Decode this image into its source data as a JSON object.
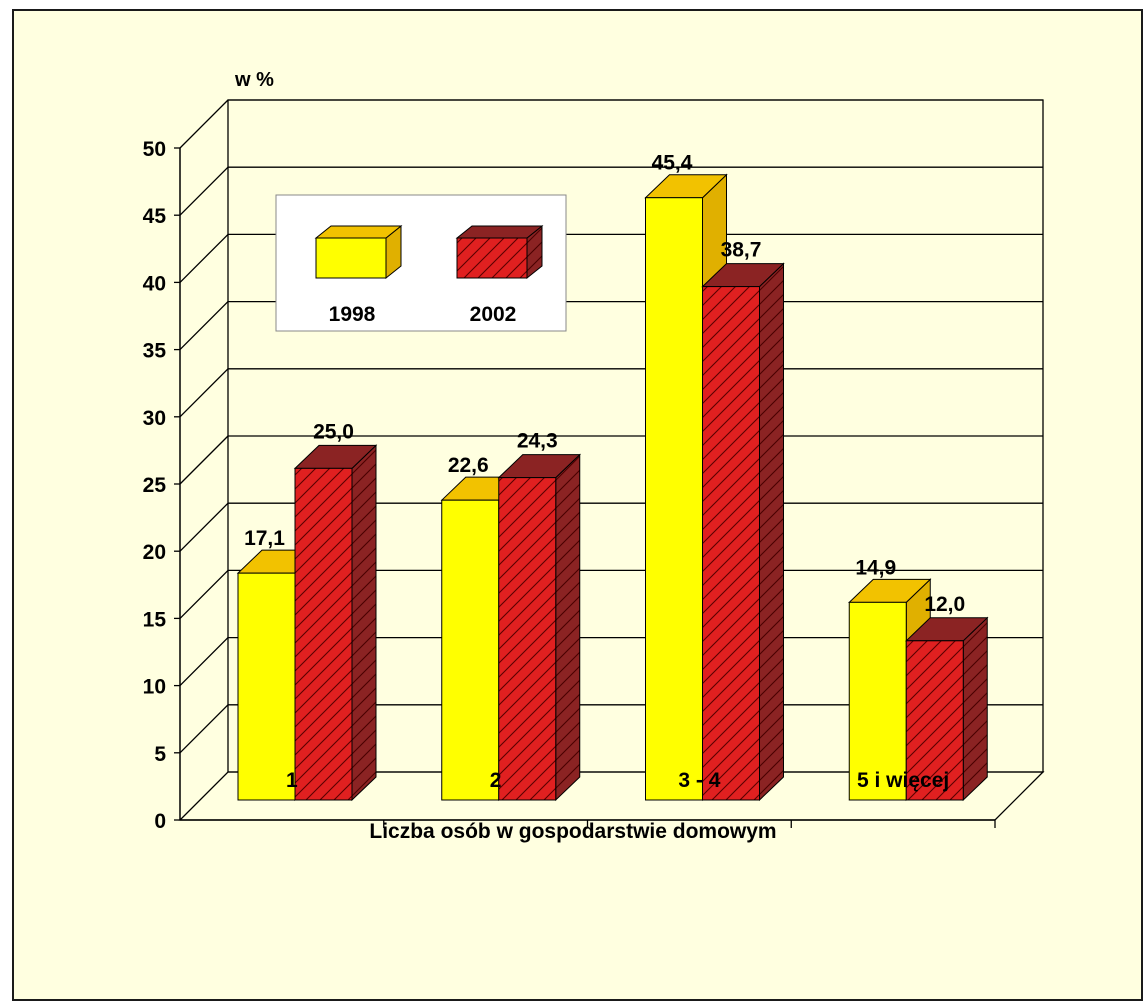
{
  "chart_data": {
    "type": "bar",
    "ylabel": "w %",
    "xlabel": "Liczba osób w gospodarstwie domowym",
    "categories": [
      "1",
      "2",
      "3 - 4",
      "5 i więcej"
    ],
    "series": [
      {
        "name": "1998",
        "values": [
          17.1,
          22.6,
          45.4,
          14.9
        ],
        "labels": [
          "17,1",
          "22,6",
          "45,4",
          "14,9"
        ],
        "color": "#ffff00",
        "top_color": "#f2c200",
        "side_color": "#e0b000"
      },
      {
        "name": "2002",
        "values": [
          25.0,
          24.3,
          38.7,
          12.0
        ],
        "labels": [
          "25,0",
          "24,3",
          "38,7",
          "12,0"
        ],
        "color": "#e02020",
        "top_color": "#8b2323",
        "side_color": "#8b2323",
        "pattern": "hatched"
      }
    ],
    "ylim": [
      0,
      50
    ],
    "yticks": [
      "0",
      "5",
      "10",
      "15",
      "20",
      "25",
      "30",
      "35",
      "40",
      "45",
      "50"
    ],
    "grid": true,
    "legend_position": "top-left",
    "background_color": "#ffffe0"
  }
}
